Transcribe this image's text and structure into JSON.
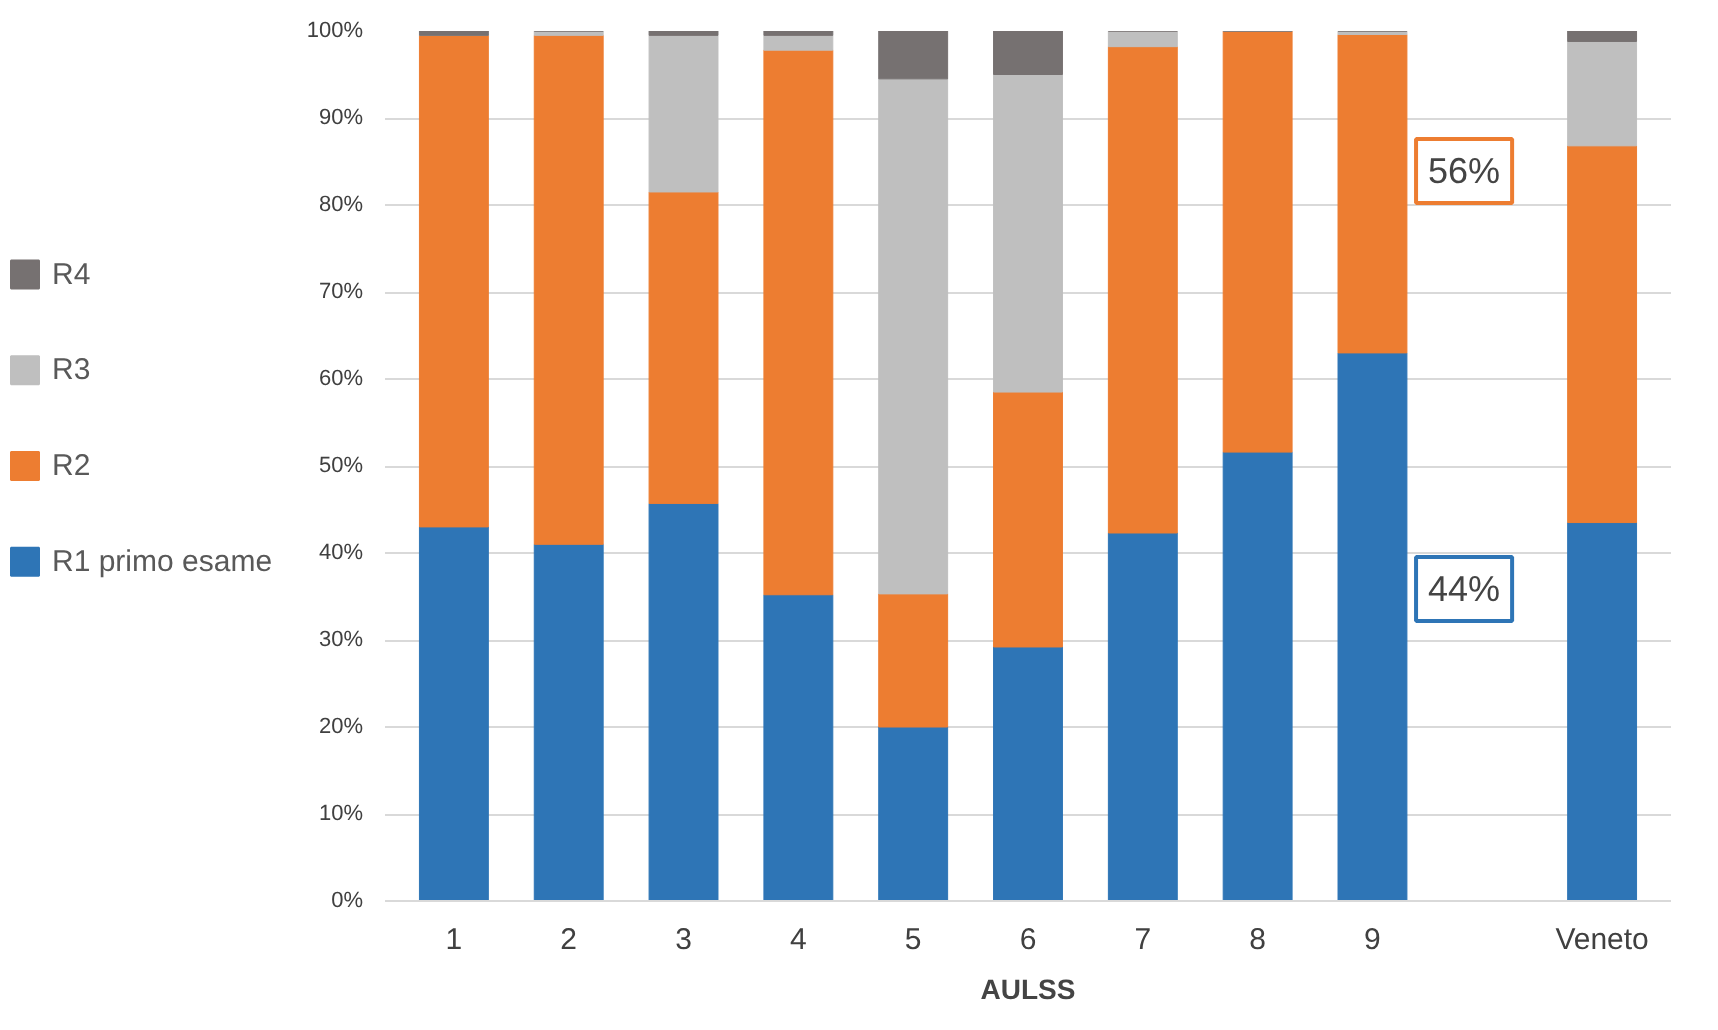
{
  "chart_data": {
    "type": "bar",
    "stacked": true,
    "xlabel": "AULSS",
    "categories": [
      "1",
      "2",
      "3",
      "4",
      "5",
      "6",
      "7",
      "8",
      "9",
      null,
      "Veneto"
    ],
    "series": [
      {
        "name": "R1 primo esame",
        "color": "#2e75b6",
        "values": [
          43,
          41,
          45.7,
          35.2,
          20,
          29.2,
          42.3,
          51.6,
          63,
          null,
          43.5
        ]
      },
      {
        "name": "R2",
        "color": "#ed7d31",
        "values": [
          56.5,
          58.5,
          35.8,
          62.6,
          15.3,
          29.3,
          55.9,
          48.4,
          36.6,
          null,
          43.3
        ]
      },
      {
        "name": "R3",
        "color": "#bfbfbf",
        "values": [
          0,
          0.5,
          18,
          1.7,
          59.2,
          36.5,
          1.8,
          0,
          0.4,
          null,
          12
        ]
      },
      {
        "name": "R4",
        "color": "#767171",
        "values": [
          0.5,
          0,
          0.5,
          0.5,
          5.5,
          5,
          0,
          0,
          0,
          null,
          1.2
        ]
      }
    ],
    "ylim": [
      0,
      100
    ],
    "yticks": [
      {
        "value": 0,
        "label": "0%"
      },
      {
        "value": 10,
        "label": "10%"
      },
      {
        "value": 20,
        "label": "20%"
      },
      {
        "value": 30,
        "label": "30%"
      },
      {
        "value": 40,
        "label": "40%"
      },
      {
        "value": 50,
        "label": "50%"
      },
      {
        "value": 60,
        "label": "60%"
      },
      {
        "value": 70,
        "label": "70%"
      },
      {
        "value": 80,
        "label": "80%"
      },
      {
        "value": 90,
        "label": "90%"
      },
      {
        "value": 100,
        "label": "100%"
      }
    ],
    "grid": "y",
    "legend": "left",
    "annotations": [
      "44%",
      "56%"
    ]
  }
}
